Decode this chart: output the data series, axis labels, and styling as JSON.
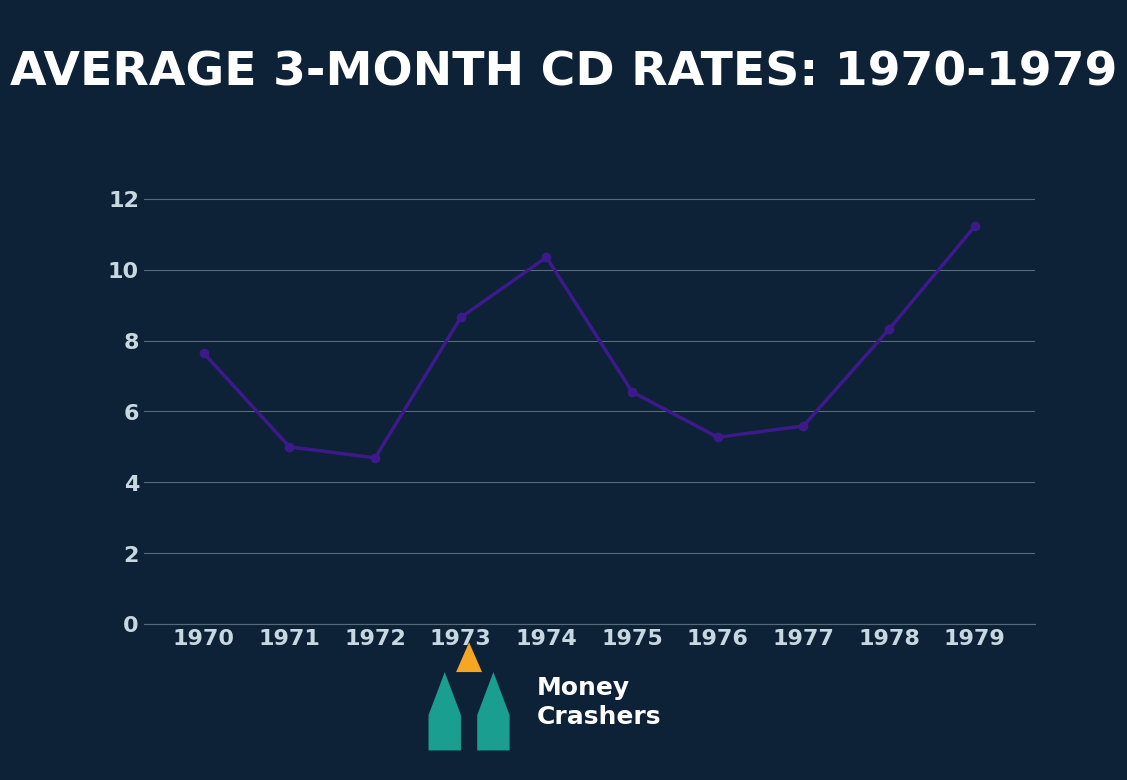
{
  "title": "AVERAGE 3-MONTH CD RATES: 1970-1979",
  "title_bg_color": "#1a9e8f",
  "title_text_color": "#ffffff",
  "bg_color": "#0d2137",
  "plot_bg_color": "#0d2137",
  "line_color": "#3d1a8a",
  "marker_color": "#3d1a8a",
  "grid_color": "#566a77",
  "tick_color": "#c8d8e0",
  "years": [
    1970,
    1971,
    1972,
    1973,
    1974,
    1975,
    1976,
    1977,
    1978,
    1979
  ],
  "values": [
    7.64,
    5.0,
    4.69,
    8.65,
    10.35,
    6.55,
    5.27,
    5.59,
    8.32,
    11.22
  ],
  "ylim": [
    0,
    13
  ],
  "yticks": [
    0,
    2,
    4,
    6,
    8,
    10,
    12
  ],
  "title_fontsize": 34,
  "tick_fontsize": 16,
  "logo_m_color": "#1a9e8f",
  "logo_crown_color": "#f5a623",
  "logo_text_color": "#ffffff",
  "logo_fontsize": 18
}
